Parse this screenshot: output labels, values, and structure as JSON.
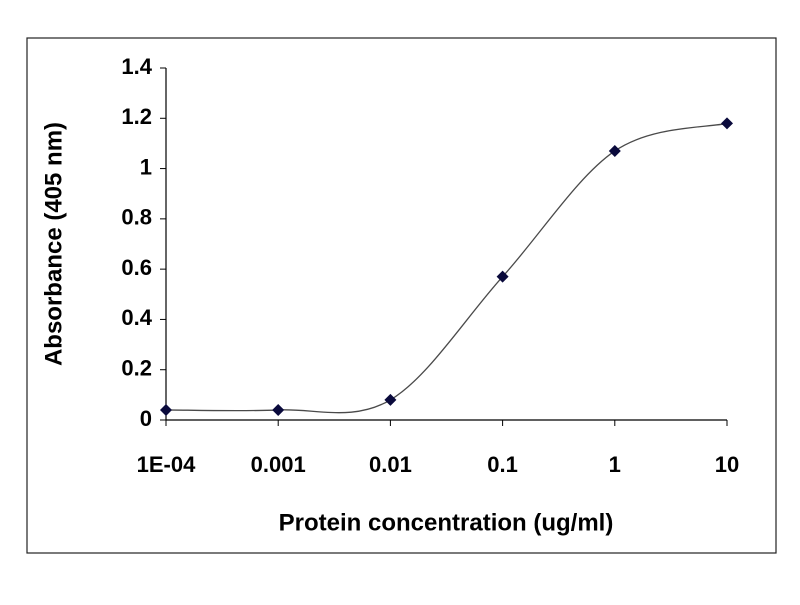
{
  "chart_data": {
    "type": "line",
    "xlabel": "Protein concentration (ug/ml)",
    "ylabel": "Absorbance (405 nm)",
    "x": [
      0.0001,
      0.001,
      0.01,
      0.1,
      1,
      10
    ],
    "values": [
      0.04,
      0.04,
      0.08,
      0.57,
      1.07,
      1.18
    ],
    "color": "#0a0a3c",
    "line_color": "#4a4a4a",
    "marker": "diamond",
    "smooth": true,
    "xscale": "log",
    "xlim": [
      0.0001,
      10
    ],
    "xticks": [
      {
        "value": 0.0001,
        "label": "1E-04"
      },
      0.001,
      0.01,
      0.1,
      1,
      10
    ],
    "ylim": [
      0,
      1.4
    ],
    "yticks": [
      0,
      0.2,
      0.4,
      0.6,
      0.8,
      1,
      1.2,
      1.4
    ],
    "grid": false
  }
}
